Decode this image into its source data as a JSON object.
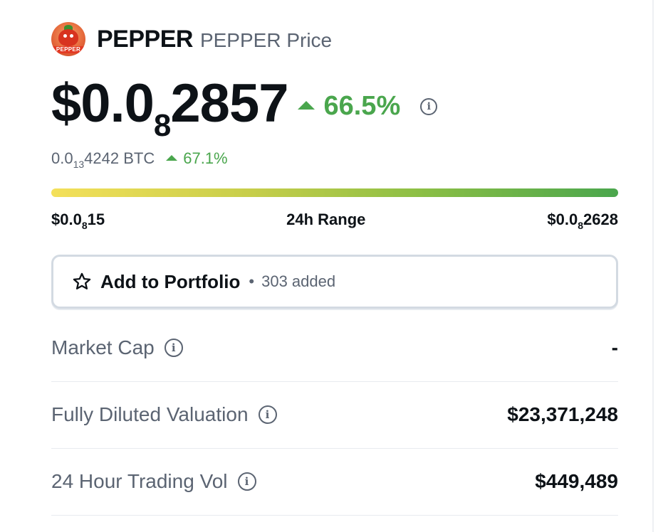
{
  "coin": {
    "logo_text": "PEPPER",
    "name": "PEPPER",
    "subtitle": "PEPPER Price"
  },
  "price": {
    "prefix": "$0.0",
    "zeros_sub": "8",
    "digits": "2857",
    "change": "66.5%",
    "change_direction": "up"
  },
  "btc": {
    "prefix": "0.0",
    "zeros_sub": "13",
    "digits": "4242 BTC",
    "change": "67.1%"
  },
  "range": {
    "low_prefix": "$0.0",
    "low_sub": "8",
    "low_digits": "15",
    "label": "24h Range",
    "high_prefix": "$0.0",
    "high_sub": "8",
    "high_digits": "2628"
  },
  "portfolio": {
    "label": "Add to Portfolio",
    "separator": "•",
    "count": "303 added"
  },
  "stats": [
    {
      "label": "Market Cap",
      "value": "-"
    },
    {
      "label": "Fully Diluted Valuation",
      "value": "$23,371,248"
    },
    {
      "label": "24 Hour Trading Vol",
      "value": "$449,489"
    }
  ],
  "colors": {
    "positive": "#4aa64d",
    "muted": "#5b6472",
    "text": "#0d1217"
  },
  "icons": {
    "info": "info-icon",
    "star": "star-icon",
    "caret_up": "caret-up-icon"
  }
}
